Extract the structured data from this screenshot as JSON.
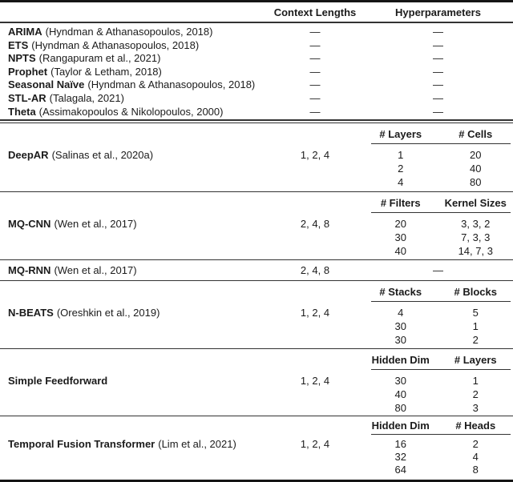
{
  "table": {
    "header": {
      "context": "Context Lengths",
      "hyper": "Hyperparameters"
    },
    "dash": "—",
    "simple_models": [
      {
        "name": "ARIMA",
        "citation": "(Hyndman & Athanasopoulos, 2018)",
        "context": "—",
        "hyper": "—"
      },
      {
        "name": "ETS",
        "citation": "(Hyndman & Athanasopoulos, 2018)",
        "context": "—",
        "hyper": "—"
      },
      {
        "name": "NPTS",
        "citation": "(Rangapuram et al., 2021)",
        "context": "—",
        "hyper": "—"
      },
      {
        "name": "Prophet",
        "citation": "(Taylor & Letham, 2018)",
        "context": "—",
        "hyper": "—"
      },
      {
        "name": "Seasonal Naïve",
        "citation": "(Hyndman & Athanasopoulos, 2018)",
        "context": "—",
        "hyper": "—"
      },
      {
        "name": "STL-AR",
        "citation": "(Talagala, 2021)",
        "context": "—",
        "hyper": "—"
      },
      {
        "name": "Theta",
        "citation": "(Assimakopoulos & Nikolopoulos, 2000)",
        "context": "—",
        "hyper": "—"
      }
    ],
    "sections": [
      {
        "name": "DeepAR",
        "citation": "(Salinas et al., 2020a)",
        "context": "1, 2, 4",
        "subheaders": [
          "# Layers",
          "# Cells"
        ],
        "rows": [
          [
            "1",
            "20"
          ],
          [
            "2",
            "40"
          ],
          [
            "4",
            "80"
          ]
        ]
      },
      {
        "name": "MQ-CNN",
        "citation": "(Wen et al., 2017)",
        "context": "2, 4, 8",
        "subheaders": [
          "# Filters",
          "Kernel Sizes"
        ],
        "rows": [
          [
            "20",
            "3, 3, 2"
          ],
          [
            "30",
            "7, 3, 3"
          ],
          [
            "40",
            "14, 7, 3"
          ]
        ]
      },
      {
        "name": "MQ-RNN",
        "citation": "(Wen et al., 2017)",
        "context": "2, 4, 8",
        "subheaders": null,
        "hyper": "—",
        "rows": []
      },
      {
        "name": "N-BEATS",
        "citation": "(Oreshkin et al., 2019)",
        "context": "1, 2, 4",
        "subheaders": [
          "# Stacks",
          "# Blocks"
        ],
        "rows": [
          [
            "4",
            "5"
          ],
          [
            "30",
            "1"
          ],
          [
            "30",
            "2"
          ]
        ]
      },
      {
        "name": "Simple Feedforward",
        "citation": "",
        "context": "1, 2, 4",
        "subheaders": [
          "Hidden Dim",
          "# Layers"
        ],
        "rows": [
          [
            "30",
            "1"
          ],
          [
            "40",
            "2"
          ],
          [
            "80",
            "3"
          ]
        ]
      },
      {
        "name": "Temporal Fusion Transformer",
        "citation": "(Lim et al., 2021)",
        "context": "1, 2, 4",
        "subheaders": [
          "Hidden Dim",
          "# Heads"
        ],
        "rows": [
          [
            "16",
            "2"
          ],
          [
            "32",
            "4"
          ],
          [
            "64",
            "8"
          ]
        ]
      }
    ]
  }
}
